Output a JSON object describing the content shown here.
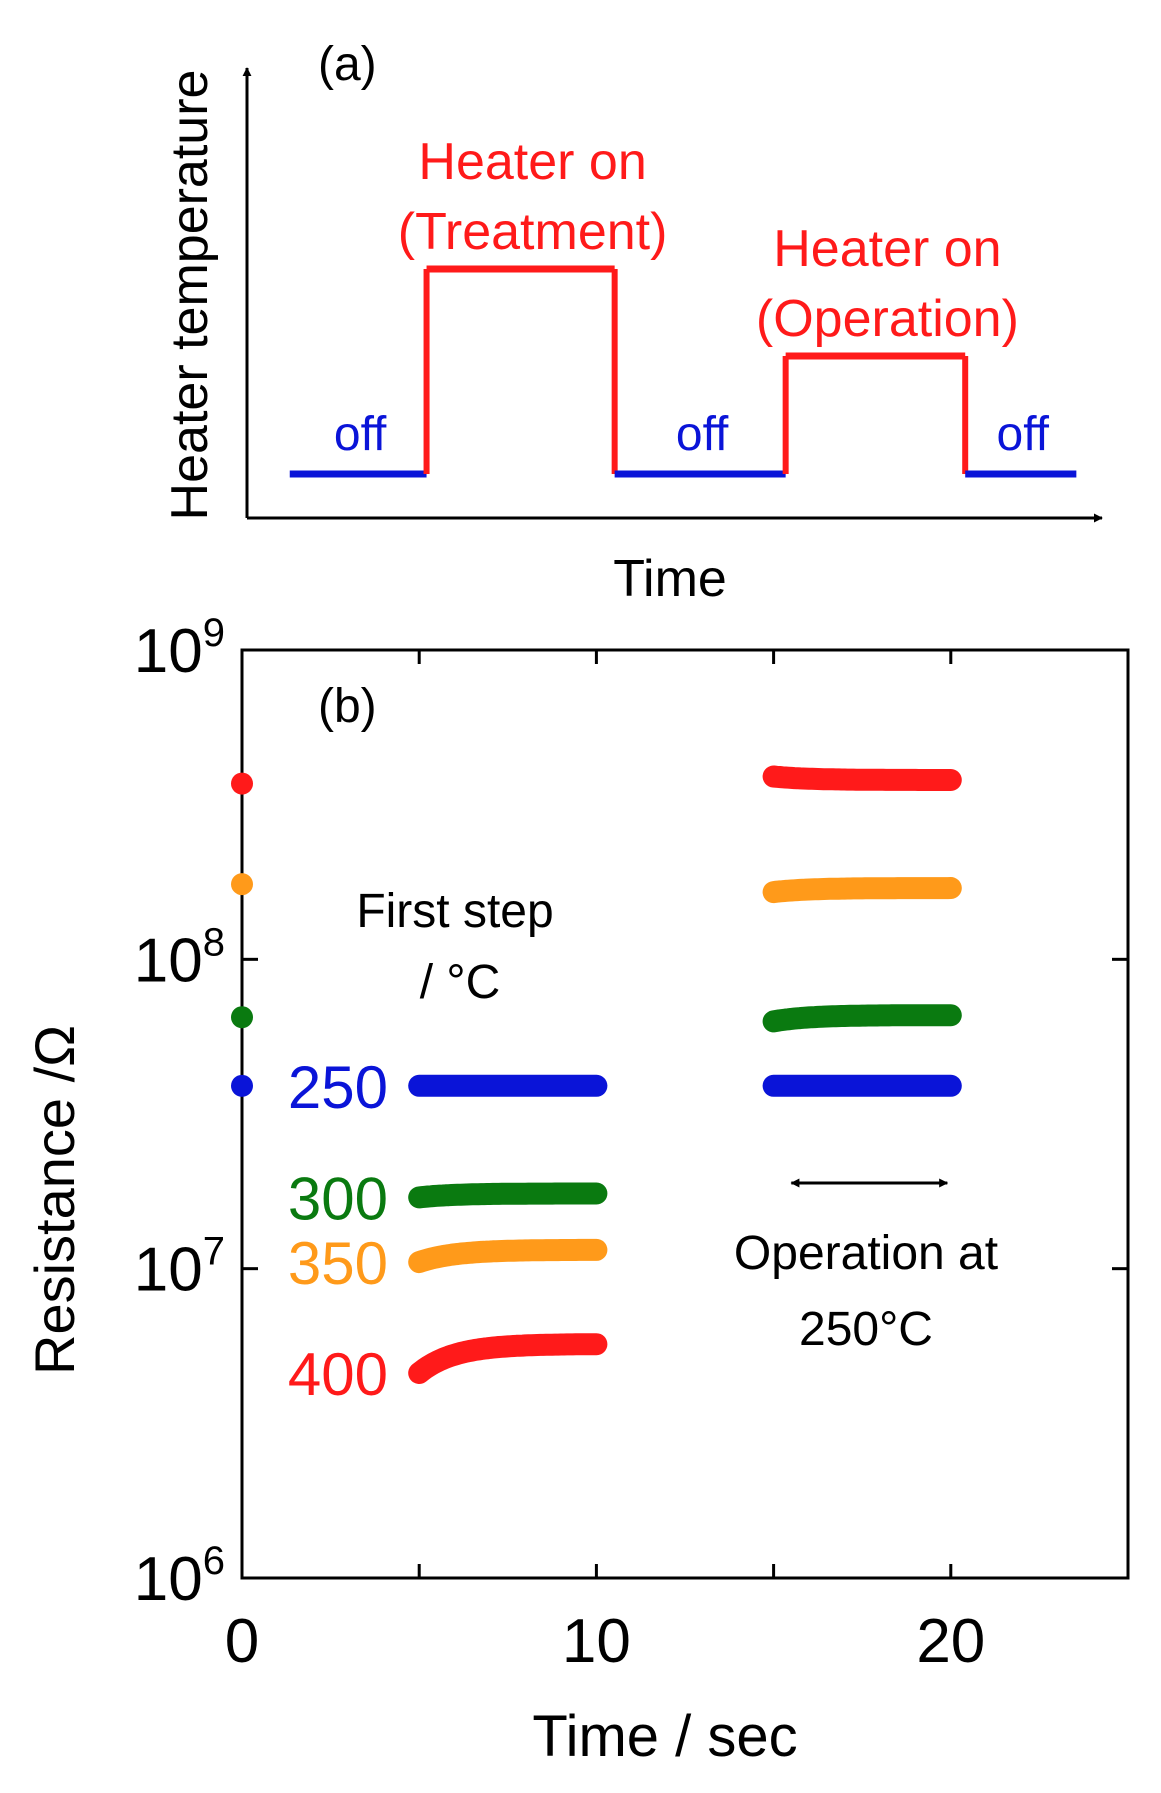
{
  "colors": {
    "red": "#ff1a1a",
    "blue": "#0a14d8",
    "orange": "#ff9a1a",
    "green": "#0a7a10",
    "axis": "#000000"
  },
  "chart_data": [
    {
      "type": "line",
      "panel_label": "(a)",
      "ylabel": "Heater temperature",
      "xlabel": "Time",
      "segments": [
        {
          "state": "off",
          "label": "off",
          "color_key": "blue",
          "t_start": 0.05,
          "t_end": 0.21,
          "level": "low"
        },
        {
          "state": "on",
          "label": "Heater on",
          "sublabel": "(Treatment)",
          "color_key": "red",
          "t_start": 0.21,
          "t_end": 0.43,
          "level": "high"
        },
        {
          "state": "off",
          "label": "off",
          "color_key": "blue",
          "t_start": 0.43,
          "t_end": 0.63,
          "level": "low"
        },
        {
          "state": "on",
          "label": "Heater on",
          "sublabel": "(Operation)",
          "color_key": "red",
          "t_start": 0.63,
          "t_end": 0.84,
          "level": "mid"
        },
        {
          "state": "off",
          "label": "off",
          "color_key": "blue",
          "t_start": 0.84,
          "t_end": 0.97,
          "level": "low"
        }
      ]
    },
    {
      "type": "scatter",
      "panel_label": "(b)",
      "xlabel": "Time / sec",
      "ylabel": "Resistance /Ω",
      "xlim": [
        0,
        25
      ],
      "ylim_log10": [
        6,
        9
      ],
      "x_ticks": [
        0,
        10,
        20
      ],
      "y_ticks": [
        {
          "base": "10",
          "exp": "6",
          "log": 6
        },
        {
          "base": "10",
          "exp": "7",
          "log": 7
        },
        {
          "base": "10",
          "exp": "8",
          "log": 8
        },
        {
          "base": "10",
          "exp": "9",
          "log": 9
        }
      ],
      "legend_title_line1": "First step",
      "legend_title_line2": "/ °C",
      "annotation_line1": "Operation at",
      "annotation_line2": "250°C",
      "annotation_arrow_x": [
        15.5,
        19.9
      ],
      "series": [
        {
          "name": "250",
          "color_key": "blue",
          "initial": 39000000.0,
          "step1": {
            "x": [
              5,
              10
            ],
            "start": 39000000.0,
            "end": 39000000.0
          },
          "step2": {
            "x": [
              15,
              20
            ],
            "start": 39000000.0,
            "end": 39000000.0
          }
        },
        {
          "name": "300",
          "color_key": "green",
          "initial": 65000000.0,
          "step1": {
            "x": [
              5,
              10
            ],
            "start": 17000000.0,
            "end": 17500000.0
          },
          "step2": {
            "x": [
              15,
              20
            ],
            "start": 63000000.0,
            "end": 66000000.0
          }
        },
        {
          "name": "350",
          "color_key": "orange",
          "initial": 175000000.0,
          "step1": {
            "x": [
              5,
              10
            ],
            "start": 10500000.0,
            "end": 11500000.0
          },
          "step2": {
            "x": [
              15,
              20
            ],
            "start": 165000000.0,
            "end": 170000000.0
          }
        },
        {
          "name": "400",
          "color_key": "red",
          "initial": 370000000.0,
          "step1": {
            "x": [
              5,
              10
            ],
            "start": 4600000.0,
            "end": 5700000.0
          },
          "step2": {
            "x": [
              15,
              20
            ],
            "start": 390000000.0,
            "end": 380000000.0
          }
        }
      ]
    }
  ]
}
